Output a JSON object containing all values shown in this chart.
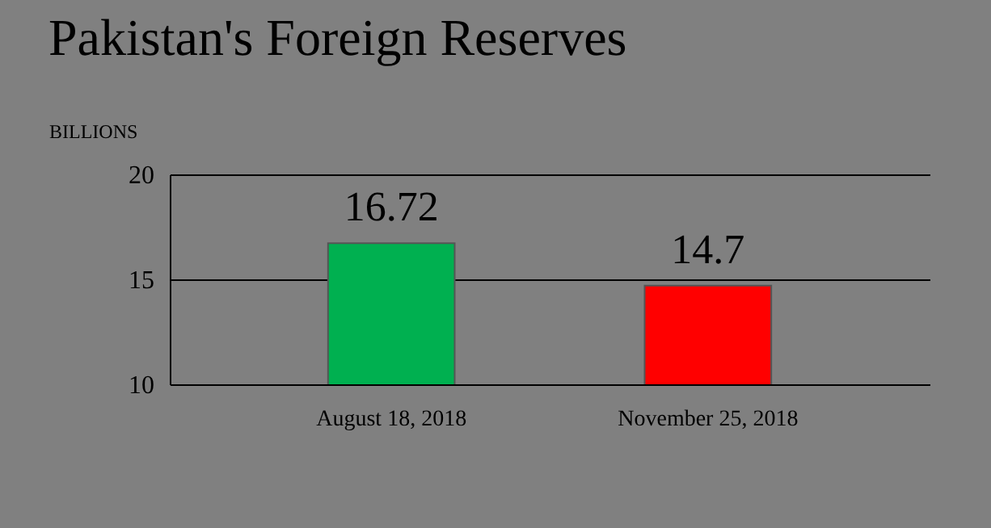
{
  "chart_data": {
    "type": "bar",
    "title": "Pakistan's Foreign Reserves",
    "ylabel": "BILLIONS",
    "categories": [
      "August 18, 2018",
      "November 25, 2018"
    ],
    "values": [
      16.72,
      14.7
    ],
    "colors": [
      "#00b050",
      "#ff0000"
    ],
    "ylim": [
      10,
      20
    ],
    "yticks": [
      10,
      15,
      20
    ],
    "grid": "y",
    "data_labels": true
  }
}
